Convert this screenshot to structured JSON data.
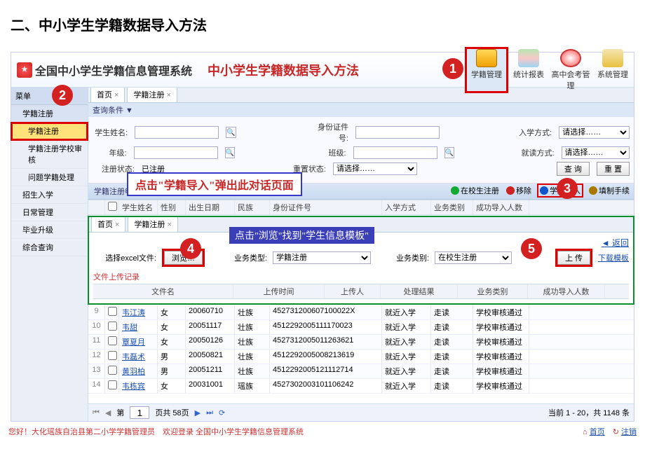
{
  "doc_title": "二、中小学生学籍数据导入方法",
  "header": {
    "system_name": "全国中小学生学籍信息管理系统",
    "subtitle": "中小学生学籍数据导入方法"
  },
  "topnav": [
    {
      "label": "学籍管理",
      "active": true
    },
    {
      "label": "统计报表"
    },
    {
      "label": "高中会考管理"
    },
    {
      "label": "系统管理"
    }
  ],
  "sidebar": {
    "cat": "菜单",
    "items": [
      {
        "label": "学籍注册",
        "cat": true
      },
      {
        "label": "学籍注册",
        "active": true,
        "sub": true
      },
      {
        "label": "学籍注册学校审核",
        "sub": true
      },
      {
        "label": "问题学籍处理",
        "sub": true
      },
      {
        "label": "招生入学"
      },
      {
        "label": "日常管理"
      },
      {
        "label": "毕业升级"
      },
      {
        "label": "综合查询"
      }
    ]
  },
  "maintabs": [
    {
      "label": "首页"
    },
    {
      "label": "学籍注册"
    }
  ],
  "filter": {
    "header_toggle": "查询条件 ▼",
    "fields": {
      "name_label": "学生姓名:",
      "id_label": "身份证件号:",
      "enroll_label": "入学方式:",
      "grade_label": "年级:",
      "class_label": "班级:",
      "read_label": "就读方式:",
      "regstate_label": "注册状态:",
      "regstate_opt": "已注册",
      "retry_label": "重置状态:",
      "retry_opt": "请选择……",
      "enroll_opt": "请选择……",
      "read_opt": "请选择……",
      "btn_query": "查 询",
      "btn_reset": "重 置"
    }
  },
  "section_title": "学籍注册申请",
  "right_actions": [
    {
      "label": "在校生注册",
      "color": "#11aa33"
    },
    {
      "label": "移除",
      "color": "#cc0000"
    },
    {
      "label": "学籍导入",
      "color": "#1155cc",
      "boxed": true
    },
    {
      "label": "填制手续",
      "color": "#996600"
    }
  ],
  "thead": [
    "",
    "",
    "学生姓名",
    "性别",
    "出生日期",
    "民族",
    "身份证件号",
    "入学方式",
    "业务类别",
    "成功导入人数"
  ],
  "balloon1": "点击\"学籍导入\"弹出此对话页面",
  "balloon2": "点击\"浏览\"找到\"学生信息模板\"",
  "dialog": {
    "tabs": [
      {
        "label": "首页"
      },
      {
        "label": "学籍注册"
      }
    ],
    "back": "返回",
    "file_label": "选择excel文件:",
    "browse": "浏览…",
    "biztype_label": "业务类型:",
    "biztype_opt": "学籍注册",
    "bizcat_label": "业务类别:",
    "bizcat_opt": "在校生注册",
    "upload": "上 传",
    "download": "下载模板",
    "section": "文件上传记录",
    "head": [
      "文件名",
      "上传时间",
      "上传人",
      "处理结果",
      "业务类别",
      "成功导入人数"
    ]
  },
  "rows": [
    {
      "idx": "9",
      "name": "韦江涛",
      "g": "女",
      "d": "20060710",
      "e": "壮族",
      "id": "452731200607100022X",
      "en": "就近入学",
      "biz": "走读",
      "res": "学校审核通过"
    },
    {
      "idx": "10",
      "name": "韦甜",
      "g": "女",
      "d": "20051117",
      "e": "壮族",
      "id": "4512292005111170023",
      "en": "就近入学",
      "biz": "走读",
      "res": "学校审核通过"
    },
    {
      "idx": "11",
      "name": "覃夏月",
      "g": "女",
      "d": "20050126",
      "e": "壮族",
      "id": "4527312005011263621",
      "en": "就近入学",
      "biz": "走读",
      "res": "学校审核通过"
    },
    {
      "idx": "12",
      "name": "韦磊术",
      "g": "男",
      "d": "20050821",
      "e": "壮族",
      "id": "4512292005008213619",
      "en": "就近入学",
      "biz": "走读",
      "res": "学校审核通过"
    },
    {
      "idx": "13",
      "name": "黄羽柏",
      "g": "男",
      "d": "20051211",
      "e": "壮族",
      "id": "4512292005121112714",
      "en": "就近入学",
      "biz": "走读",
      "res": "学校审核通过"
    },
    {
      "idx": "14",
      "name": "韦栋宾",
      "g": "女",
      "d": "20031001",
      "e": "瑶族",
      "id": "4527302003101106242",
      "en": "就近入学",
      "biz": "走读",
      "res": "学校审核通过"
    }
  ],
  "footer": {
    "page_label": "页共 58页",
    "page": "1",
    "range": "当前 1 - 20，共 1148 条"
  },
  "status": {
    "left": "您好！大化瑶族自治县第二小学学籍管理员　欢迎登录 全国中小学生学籍信息管理系统",
    "home": "首页",
    "logout": "注销"
  }
}
